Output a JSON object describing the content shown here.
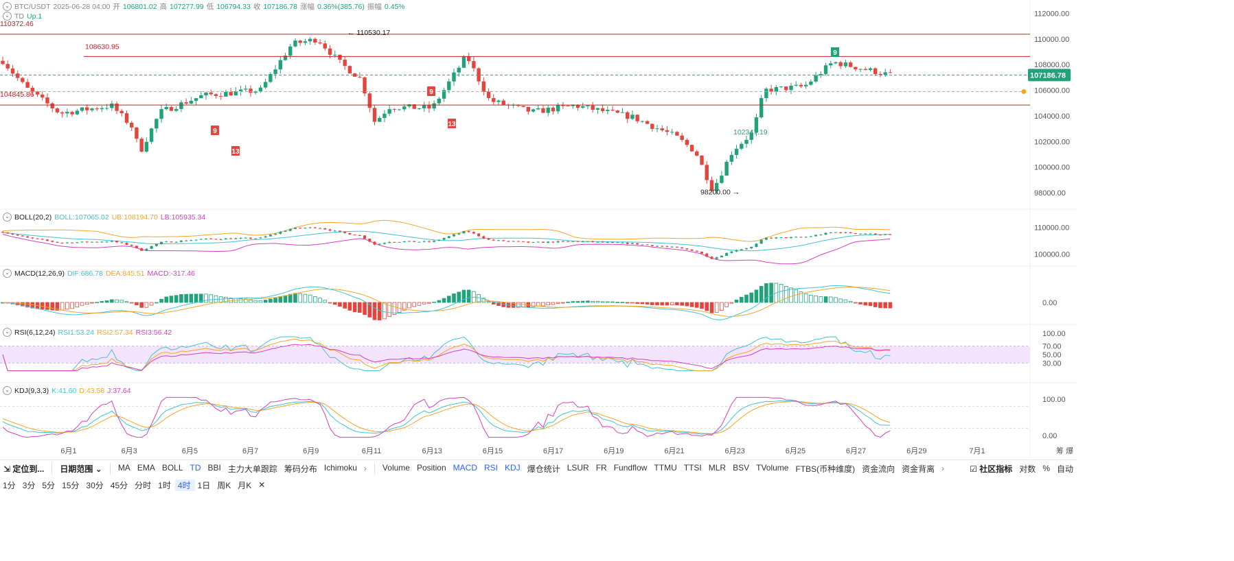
{
  "header": {
    "symbol": "BTC/USDT",
    "datetime": "2025-06-28 04:00",
    "open_label": "开",
    "open": "106801.02",
    "high_label": "高",
    "high": "107277.99",
    "low_label": "低",
    "low": "106794.33",
    "close_label": "收",
    "close": "107186.78",
    "change_label": "涨幅",
    "change": "0.36%(385.76)",
    "amp_label": "振幅",
    "amp": "0.45%"
  },
  "td_header": {
    "name": "TD",
    "value": "Up:1"
  },
  "boll_header": {
    "name": "BOLL(20,2)",
    "boll": "BOLL:107065.02",
    "ub": "UB:108194.70",
    "lb": "LB:105935.34"
  },
  "macd_header": {
    "name": "MACD(12,26,9)",
    "dif": "DIF:686.78",
    "dea": "DEA:845.51",
    "macd": "MACD:-317.46"
  },
  "rsi_header": {
    "name": "RSI(6,12,24)",
    "rsi1": "RSI1:53.24",
    "rsi2": "RSI2:57.34",
    "rsi3": "RSI3:56.42"
  },
  "kdj_header": {
    "name": "KDJ(9,3,3)",
    "k": "K:41.60",
    "d": "D:43.58",
    "j": "J:37.64"
  },
  "chart_data": {
    "type": "candlestick",
    "main": {
      "price_ticks": [
        "112000.00",
        "110000.00",
        "108000.00",
        "106000.00",
        "104000.00",
        "102000.00",
        "100000.00",
        "98000.00"
      ],
      "current_price": "107186.78",
      "levels": [
        {
          "value": 110372.46,
          "label": "110372.46"
        },
        {
          "value": 108630.95,
          "label": "108630.95"
        },
        {
          "value": 104845.86,
          "label": "104845.86"
        }
      ],
      "annotations": [
        {
          "label": "110530.17",
          "value": 110530.17
        },
        {
          "label": "102347.19",
          "value": 102347.19
        },
        {
          "label": "98200.00",
          "value": 98200.0
        }
      ],
      "td_markers": [
        "9",
        "13",
        "9",
        "13",
        "9"
      ],
      "ylim": [
        97200,
        112400
      ]
    },
    "x_ticks": [
      "6月1",
      "6月3",
      "6月5",
      "6月7",
      "6月9",
      "6月11",
      "6月13",
      "6月15",
      "6月17",
      "6月19",
      "6月21",
      "6月23",
      "6月25",
      "6月27",
      "6月29",
      "7月1"
    ],
    "boll_ticks": [
      "110000.00",
      "100000.00"
    ],
    "macd_ticks": [
      "0.00"
    ],
    "rsi_ticks": [
      "100.00",
      "70.00",
      "50.00",
      "30.00"
    ],
    "kdj_ticks": [
      "100.00",
      "0.00"
    ],
    "colors": {
      "up": "#21a27a",
      "down": "#e2463f",
      "resistance": "#c0202a",
      "ma_dash": "#f5a623",
      "price_tag": "#21a27a"
    }
  },
  "toolbar": {
    "locate": "定位到...",
    "range": "日期范围",
    "main_indicators": [
      "MA",
      "EMA",
      "BOLL",
      "TD",
      "BBI",
      "主力大单跟踪",
      "筹码分布",
      "Ichimoku"
    ],
    "sub_indicators": [
      "Volume",
      "Position",
      "MACD",
      "RSI",
      "KDJ",
      "爆仓统计",
      "LSUR",
      "FR",
      "Fundflow",
      "TTMU",
      "TTSI",
      "MLR",
      "BSV",
      "TVolume",
      "FTBS(币种维度)",
      "资金流向",
      "资金背离"
    ],
    "community": "社区指标",
    "log": "对数",
    "pct": "%",
    "auto": "自动",
    "right_extra": [
      "筹",
      "爆"
    ]
  },
  "timeframes": [
    "1分",
    "3分",
    "5分",
    "15分",
    "30分",
    "45分",
    "分时",
    "1时",
    "4时",
    "1日",
    "周K",
    "月K"
  ],
  "active_timeframe": "4时"
}
